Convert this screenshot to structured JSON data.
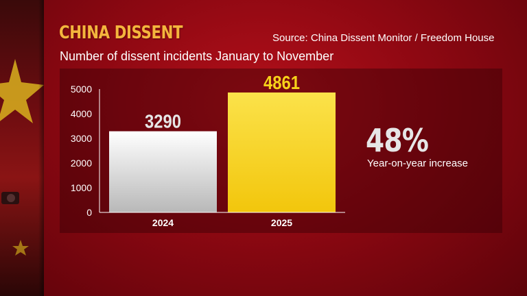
{
  "header": {
    "title": "CHINA DISSENT",
    "source": "Source: China Dissent Monitor / Freedom House",
    "subtitle": "Number of dissent incidents January to November"
  },
  "highlight": {
    "value": "48%",
    "label": "Year-on-year increase"
  },
  "colors": {
    "title": "#f4b53d",
    "bar_2024": "#e8e8e8",
    "bar_2025": "#f6d21a"
  },
  "chart_data": {
    "type": "bar",
    "categories": [
      "2024",
      "2025"
    ],
    "values": [
      3290,
      4861
    ],
    "data_labels": [
      "3290",
      "4861"
    ],
    "ylim": [
      0,
      5000
    ],
    "yticks": [
      "0",
      "1000",
      "2000",
      "3000",
      "4000",
      "5000"
    ],
    "grid": false,
    "legend": "none"
  }
}
